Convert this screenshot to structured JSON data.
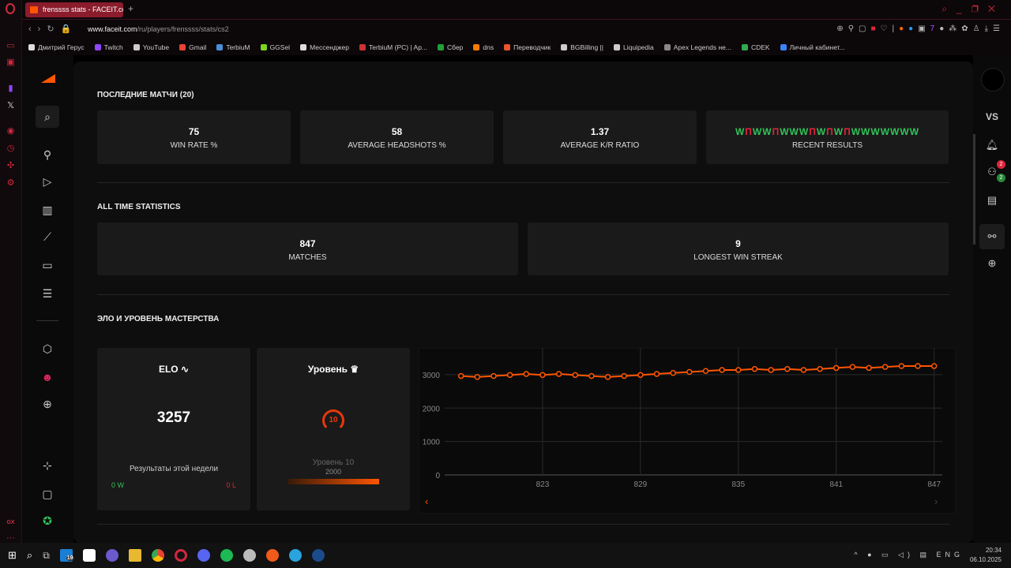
{
  "browser": {
    "tab_title": "frenssss stats - FACEIT.co",
    "url_host": "www.faceit.com",
    "url_path": "/ru/players/frenssss/stats/cs2",
    "bookmarks": [
      "Дмитрий Герус",
      "Twitch",
      "YouTube",
      "Gmail",
      "TerbiuM",
      "GGSel",
      "Мессенджер",
      "TerbiuM (PC) | Ap...",
      "Сбер",
      "dns",
      "Переводчик",
      "BGBilling ||",
      "Liquipedia",
      "Apex Legends не...",
      "CDEK",
      "Личный кабинет..."
    ],
    "bookmark_colors": [
      "#ddd",
      "#9146ff",
      "#ccc",
      "#ea4335",
      "#4a90d9",
      "#7ed321",
      "#ddd",
      "#c33",
      "#21a038",
      "#f57c00",
      "#e8552c",
      "#ccc",
      "#ccc",
      "#888",
      "#2eab4f",
      "#3b82f6"
    ]
  },
  "recent": {
    "title": "ПОСЛЕДНИЕ МАТЧИ (20)",
    "cards": [
      {
        "value": "75",
        "label": "WIN RATE %"
      },
      {
        "value": "58",
        "label": "AVERAGE HEADSHOTS %"
      },
      {
        "value": "1.37",
        "label": "AVERAGE K/R RATIO"
      }
    ],
    "results": [
      "W",
      "П",
      "W",
      "W",
      "П",
      "W",
      "W",
      "W",
      "П",
      "W",
      "П",
      "W",
      "П",
      "W",
      "W",
      "W",
      "W",
      "W",
      "W",
      "W"
    ],
    "results_label": "RECENT RESULTS"
  },
  "alltime": {
    "title": "ALL TIME STATISTICS",
    "cards": [
      {
        "value": "847",
        "label": "MATCHES"
      },
      {
        "value": "9",
        "label": "LONGEST WIN STREAK"
      }
    ]
  },
  "elo_section": {
    "title": "ЭЛО И УРОВЕНЬ МАСТЕРСТВА",
    "elo_label": "ELO",
    "elo_value": "3257",
    "week_label": "Результаты этой недели",
    "week_wins": "0 W",
    "week_losses": "0 L",
    "level_label": "Уровень",
    "level_value": "10",
    "level_name": "Уровень 10",
    "level_threshold": "2000",
    "level_progress": 1.0
  },
  "right_nav": {
    "vs": "VS",
    "friends_badge": "2",
    "online_badge": "2"
  },
  "taskbar": {
    "lang": "ENG",
    "time": "20:34",
    "date": "06.10.2025",
    "badge": "19"
  },
  "chart_data": {
    "type": "line",
    "title": "",
    "xlabel": "",
    "ylabel": "ELO",
    "x": [
      818,
      819,
      820,
      821,
      822,
      823,
      824,
      825,
      826,
      827,
      828,
      829,
      830,
      831,
      832,
      833,
      834,
      835,
      836,
      837,
      838,
      839,
      840,
      841,
      842,
      843,
      844,
      845,
      846,
      847
    ],
    "values": [
      2960,
      2930,
      2960,
      2990,
      3020,
      2990,
      3020,
      2990,
      2960,
      2930,
      2960,
      2990,
      3020,
      3050,
      3080,
      3110,
      3140,
      3140,
      3170,
      3140,
      3170,
      3140,
      3170,
      3200,
      3230,
      3200,
      3230,
      3257,
      3257,
      3257
    ],
    "xticks": [
      "823",
      "829",
      "835",
      "841",
      "847"
    ],
    "yticks": [
      "0",
      "1000",
      "2000",
      "3000"
    ],
    "ylim": [
      0,
      3800
    ],
    "grid": true,
    "color": "#ff5500"
  }
}
